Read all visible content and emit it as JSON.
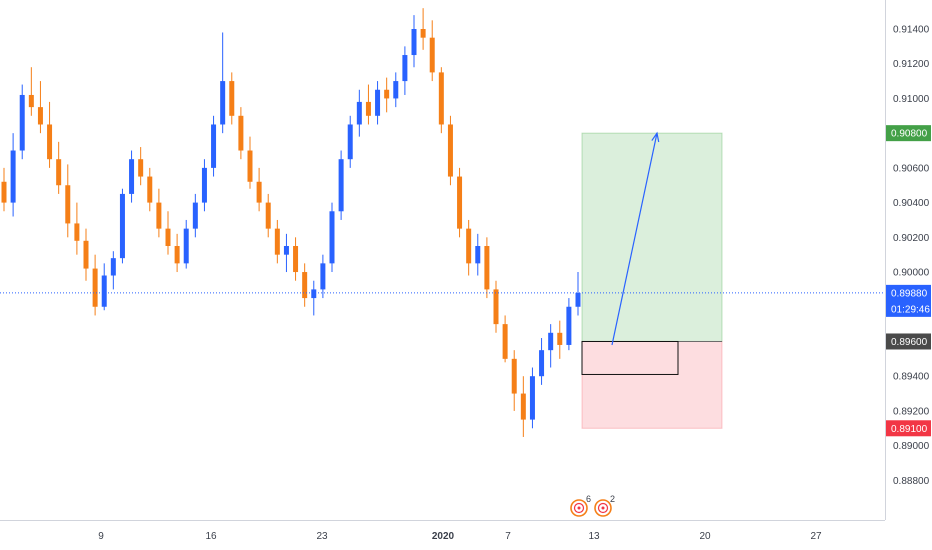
{
  "chart_data": {
    "type": "candlestick",
    "y_range": [
      0.887,
      0.9155
    ],
    "price_axis_ticks": [
      "0.91400",
      "0.91200",
      "0.91000",
      "0.90600",
      "0.90400",
      "0.90200",
      "0.90000",
      "0.89400",
      "0.89200",
      "0.89000",
      "0.88800"
    ],
    "price_axis_tick_values": [
      0.914,
      0.912,
      0.91,
      0.906,
      0.904,
      0.902,
      0.9,
      0.894,
      0.892,
      0.89,
      0.888
    ],
    "time_axis_ticks": [
      "9",
      "16",
      "23",
      "2020",
      "7",
      "13",
      "20",
      "27"
    ],
    "current_price": {
      "value": 0.8988,
      "label": "0.89880",
      "countdown": "01:29:46",
      "color": "#2962ff"
    },
    "markers": {
      "take_profit": {
        "value": 0.908,
        "label": "0.90800",
        "color": "#43a047"
      },
      "entry": {
        "value": 0.896,
        "label": "0.89600",
        "color": "#4a4a4a"
      },
      "stop_loss": {
        "value": 0.891,
        "label": "0.89100",
        "color": "#f23645"
      }
    },
    "long_position": {
      "entry": 0.896,
      "target": 0.908,
      "stop": 0.891
    },
    "inner_box": {
      "top": 0.896,
      "bottom": 0.8941
    },
    "forecast_arrow": {
      "from": 0.8958,
      "to": 0.908
    },
    "event_icons": [
      {
        "count": "6"
      },
      {
        "count": "2"
      }
    ],
    "up_color": "#2962ff",
    "down_color": "#f57f17",
    "ohlc": [
      [
        0.9052,
        0.906,
        0.9035,
        0.904
      ],
      [
        0.904,
        0.908,
        0.9032,
        0.907
      ],
      [
        0.907,
        0.9108,
        0.9065,
        0.9102
      ],
      [
        0.9102,
        0.9118,
        0.909,
        0.9095
      ],
      [
        0.9095,
        0.911,
        0.908,
        0.9085
      ],
      [
        0.9085,
        0.9098,
        0.906,
        0.9065
      ],
      [
        0.9065,
        0.9075,
        0.9045,
        0.905
      ],
      [
        0.905,
        0.9062,
        0.902,
        0.9028
      ],
      [
        0.9028,
        0.904,
        0.901,
        0.9018
      ],
      [
        0.9018,
        0.9025,
        0.8995,
        0.9002
      ],
      [
        0.9002,
        0.901,
        0.8975,
        0.898
      ],
      [
        0.898,
        0.9005,
        0.8978,
        0.8998
      ],
      [
        0.8998,
        0.9012,
        0.899,
        0.9008
      ],
      [
        0.9008,
        0.9048,
        0.9005,
        0.9045
      ],
      [
        0.9045,
        0.907,
        0.904,
        0.9065
      ],
      [
        0.9065,
        0.9072,
        0.905,
        0.9055
      ],
      [
        0.9055,
        0.906,
        0.9035,
        0.904
      ],
      [
        0.904,
        0.9048,
        0.902,
        0.9025
      ],
      [
        0.9025,
        0.9035,
        0.901,
        0.9015
      ],
      [
        0.9015,
        0.9022,
        0.9,
        0.9005
      ],
      [
        0.9005,
        0.903,
        0.9002,
        0.9025
      ],
      [
        0.9025,
        0.9045,
        0.902,
        0.904
      ],
      [
        0.904,
        0.9065,
        0.9035,
        0.906
      ],
      [
        0.906,
        0.909,
        0.9055,
        0.9085
      ],
      [
        0.9085,
        0.9138,
        0.908,
        0.911
      ],
      [
        0.911,
        0.9115,
        0.9085,
        0.909
      ],
      [
        0.909,
        0.9095,
        0.9065,
        0.907
      ],
      [
        0.907,
        0.9078,
        0.9048,
        0.9052
      ],
      [
        0.9052,
        0.906,
        0.9035,
        0.904
      ],
      [
        0.904,
        0.9045,
        0.902,
        0.9025
      ],
      [
        0.9025,
        0.903,
        0.9005,
        0.901
      ],
      [
        0.901,
        0.9022,
        0.9,
        0.9015
      ],
      [
        0.9015,
        0.902,
        0.8995,
        0.9
      ],
      [
        0.9,
        0.9005,
        0.898,
        0.8985
      ],
      [
        0.8985,
        0.8995,
        0.8975,
        0.899
      ],
      [
        0.899,
        0.901,
        0.8985,
        0.9005
      ],
      [
        0.9005,
        0.904,
        0.9,
        0.9035
      ],
      [
        0.9035,
        0.907,
        0.903,
        0.9065
      ],
      [
        0.9065,
        0.909,
        0.906,
        0.9085
      ],
      [
        0.9085,
        0.9105,
        0.9078,
        0.9098
      ],
      [
        0.9098,
        0.9108,
        0.9085,
        0.909
      ],
      [
        0.909,
        0.911,
        0.9085,
        0.9105
      ],
      [
        0.9105,
        0.9112,
        0.9092,
        0.91
      ],
      [
        0.91,
        0.9115,
        0.9095,
        0.911
      ],
      [
        0.911,
        0.913,
        0.9102,
        0.9125
      ],
      [
        0.9125,
        0.9148,
        0.9118,
        0.914
      ],
      [
        0.914,
        0.9152,
        0.9128,
        0.9135
      ],
      [
        0.9135,
        0.9145,
        0.911,
        0.9115
      ],
      [
        0.9115,
        0.9118,
        0.908,
        0.9085
      ],
      [
        0.9085,
        0.909,
        0.905,
        0.9055
      ],
      [
        0.9055,
        0.906,
        0.902,
        0.9025
      ],
      [
        0.9025,
        0.903,
        0.8998,
        0.9005
      ],
      [
        0.9005,
        0.9022,
        0.8998,
        0.9015
      ],
      [
        0.9015,
        0.902,
        0.8985,
        0.899
      ],
      [
        0.899,
        0.8995,
        0.8965,
        0.897
      ],
      [
        0.897,
        0.8975,
        0.8948,
        0.895
      ],
      [
        0.895,
        0.8955,
        0.892,
        0.893
      ],
      [
        0.893,
        0.894,
        0.8905,
        0.8915
      ],
      [
        0.8915,
        0.8945,
        0.891,
        0.894
      ],
      [
        0.894,
        0.8962,
        0.8935,
        0.8955
      ],
      [
        0.8955,
        0.897,
        0.8945,
        0.8965
      ],
      [
        0.8965,
        0.8972,
        0.895,
        0.8958
      ],
      [
        0.8958,
        0.8985,
        0.8955,
        0.898
      ],
      [
        0.898,
        0.9,
        0.8975,
        0.8988
      ]
    ]
  }
}
